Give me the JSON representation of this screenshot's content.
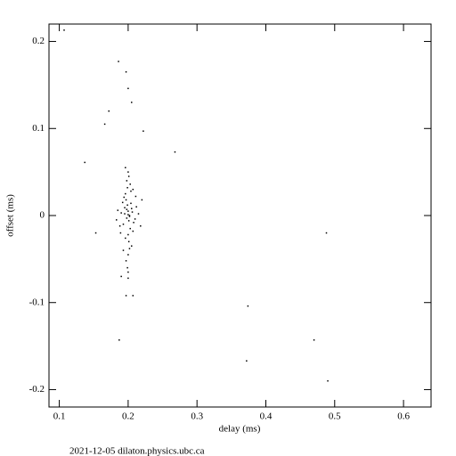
{
  "chart_data": {
    "type": "scatter",
    "x_label": "delay (ms)",
    "y_label": "offset (ms)",
    "footer": "2021-12-05 dilaton.physics.ubc.ca",
    "color": "#000000",
    "x": [
      0.195,
      0.198,
      0.2,
      0.202,
      0.205,
      0.193,
      0.199,
      0.201,
      0.197,
      0.203,
      0.206,
      0.196,
      0.2,
      0.204,
      0.19,
      0.21,
      0.188,
      0.212,
      0.199,
      0.201,
      0.194,
      0.207,
      0.198,
      0.202,
      0.185,
      0.215,
      0.2,
      0.196,
      0.204,
      0.192,
      0.208,
      0.2,
      0.197,
      0.203,
      0.189,
      0.211,
      0.199,
      0.201,
      0.195,
      0.205,
      0.218,
      0.183,
      0.2,
      0.198,
      0.202,
      0.22,
      0.193,
      0.207,
      0.2,
      0.196,
      0.107,
      0.186,
      0.197,
      0.2,
      0.172,
      0.205,
      0.166,
      0.222,
      0.137,
      0.268,
      0.153,
      0.488,
      0.374,
      0.187,
      0.47,
      0.372,
      0.49,
      0.197,
      0.207,
      0.2,
      0.19
    ],
    "values": [
      0.002,
      -0.003,
      0.005,
      0.0,
      0.008,
      -0.01,
      0.012,
      -0.006,
      0.018,
      -0.015,
      0.004,
      0.025,
      -0.022,
      0.014,
      0.003,
      -0.004,
      -0.012,
      0.01,
      0.032,
      -0.03,
      0.021,
      -0.018,
      0.04,
      -0.038,
      0.006,
      0.002,
      -0.045,
      -0.026,
      0.028,
      0.015,
      -0.008,
      0.05,
      -0.052,
      0.036,
      -0.02,
      0.022,
      -0.06,
      0.045,
      0.009,
      -0.035,
      -0.012,
      -0.005,
      0.001,
      0.007,
      -0.001,
      0.018,
      -0.04,
      0.03,
      -0.065,
      0.055,
      0.213,
      0.177,
      0.165,
      0.146,
      0.12,
      0.13,
      0.105,
      0.097,
      0.061,
      0.073,
      -0.02,
      -0.02,
      -0.104,
      -0.143,
      -0.143,
      -0.167,
      -0.19,
      -0.092,
      -0.092,
      -0.072,
      -0.07
    ],
    "xlim": [
      0.085,
      0.64
    ],
    "xticks": [
      0.1,
      0.2,
      0.3,
      0.4,
      0.5,
      0.6
    ],
    "ylim": [
      -0.22,
      0.22
    ],
    "yticks": [
      -0.2,
      -0.1,
      0,
      0.1,
      0.2
    ]
  }
}
